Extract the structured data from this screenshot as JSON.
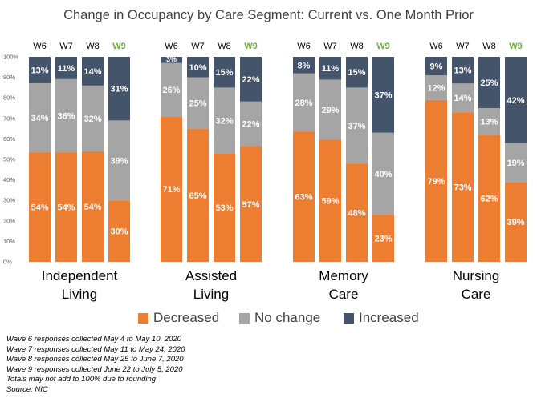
{
  "chart_data": {
    "type": "bar",
    "stacked": true,
    "title": "Change in Occupancy by Care Segment: Current vs. One Month Prior",
    "ylim": [
      0,
      100
    ],
    "yticks": [
      "0%",
      "10%",
      "20%",
      "30%",
      "40%",
      "50%",
      "60%",
      "70%",
      "80%",
      "90%",
      "100%"
    ],
    "groups": [
      {
        "name": "Independent Living",
        "name_lines": [
          "Independent",
          "Living"
        ],
        "waves": [
          {
            "label": "W6",
            "decreased": 54,
            "no_change": 34,
            "increased": 13,
            "labels": [
              "54%",
              "34%",
              "13%"
            ]
          },
          {
            "label": "W7",
            "decreased": 54,
            "no_change": 36,
            "increased": 11,
            "labels": [
              "54%",
              "36%",
              "11%"
            ]
          },
          {
            "label": "W8",
            "decreased": 54,
            "no_change": 32,
            "increased": 14,
            "labels": [
              "54%",
              "32%",
              "14%"
            ]
          },
          {
            "label": "W9",
            "decreased": 30,
            "no_change": 39,
            "increased": 31,
            "labels": [
              "30%",
              "39%",
              "31%"
            ]
          }
        ]
      },
      {
        "name": "Assisted Living",
        "name_lines": [
          "Assisted",
          "Living"
        ],
        "waves": [
          {
            "label": "W6",
            "decreased": 71,
            "no_change": 26,
            "increased": 3,
            "labels": [
              "71%",
              "26%",
              "3%"
            ]
          },
          {
            "label": "W7",
            "decreased": 65,
            "no_change": 25,
            "increased": 10,
            "labels": [
              "65%",
              "25%",
              "10%"
            ]
          },
          {
            "label": "W8",
            "decreased": 53,
            "no_change": 32,
            "increased": 15,
            "labels": [
              "53%",
              "32%",
              "15%"
            ]
          },
          {
            "label": "W9",
            "decreased": 57,
            "no_change": 22,
            "increased": 22,
            "labels": [
              "57%",
              "22%",
              "22%"
            ]
          }
        ]
      },
      {
        "name": "Memory Care",
        "name_lines": [
          "Memory",
          "Care"
        ],
        "waves": [
          {
            "label": "W6",
            "decreased": 63,
            "no_change": 28,
            "increased": 8,
            "labels": [
              "63%",
              "28%",
              "8%"
            ]
          },
          {
            "label": "W7",
            "decreased": 59,
            "no_change": 29,
            "increased": 11,
            "labels": [
              "59%",
              "29%",
              "11%"
            ]
          },
          {
            "label": "W8",
            "decreased": 48,
            "no_change": 37,
            "increased": 15,
            "labels": [
              "48%",
              "37%",
              "15%"
            ]
          },
          {
            "label": "W9",
            "decreased": 23,
            "no_change": 40,
            "increased": 37,
            "labels": [
              "23%",
              "40%",
              "37%"
            ]
          }
        ]
      },
      {
        "name": "Nursing Care",
        "name_lines": [
          "Nursing",
          "Care"
        ],
        "waves": [
          {
            "label": "W6",
            "decreased": 79,
            "no_change": 12,
            "increased": 9,
            "labels": [
              "79%",
              "12%",
              "9%"
            ]
          },
          {
            "label": "W7",
            "decreased": 73,
            "no_change": 14,
            "increased": 13,
            "labels": [
              "73%",
              "14%",
              "13%"
            ]
          },
          {
            "label": "W8",
            "decreased": 62,
            "no_change": 13,
            "increased": 25,
            "labels": [
              "62%",
              "13%",
              "25%"
            ]
          },
          {
            "label": "W9",
            "decreased": 39,
            "no_change": 19,
            "increased": 42,
            "labels": [
              "39%",
              "19%",
              "42%"
            ]
          }
        ]
      }
    ],
    "legend": {
      "position": "bottom",
      "items": [
        {
          "key": "decreased",
          "label": "Decreased",
          "color": "#ED7D31"
        },
        {
          "key": "no_change",
          "label": "No change",
          "color": "#A5A5A5"
        },
        {
          "key": "increased",
          "label": "Increased",
          "color": "#44546A"
        }
      ]
    },
    "highlight_wave": "W9",
    "highlight_color": "#70AD47",
    "grid": false
  },
  "footnotes": [
    "Wave 6 responses collected May 4 to May 10, 2020",
    "Wave 7 responses collected May 11 to May 24, 2020",
    "Wave 8 responses collected May 25 to June 7, 2020",
    "Wave 9 responses collected June 22 to July 5, 2020",
    "Totals may not add to 100% due to rounding",
    "Source: NIC"
  ]
}
